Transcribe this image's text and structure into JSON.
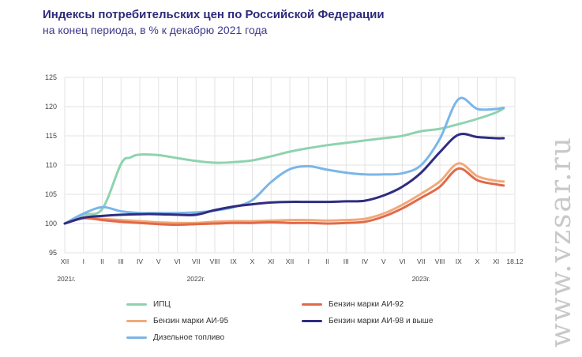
{
  "header": {
    "title": "Индексы потребительских цен по Российской Федерации",
    "subtitle": "на конец периода, в % к декабрю 2021 года"
  },
  "watermark": "www.vzsar.ru",
  "chart_data": {
    "type": "line",
    "ylim": [
      95,
      125
    ],
    "yticks": [
      95,
      100,
      105,
      110,
      115,
      120,
      125
    ],
    "x_ticks": [
      "XII",
      "I",
      "II",
      "III",
      "IV",
      "V",
      "VI",
      "VII",
      "VIII",
      "IX",
      "X",
      "XI",
      "XII",
      "I",
      "II",
      "III",
      "IV",
      "V",
      "VI",
      "VII",
      "VIII",
      "IX",
      "X",
      "XI",
      "18.12"
    ],
    "year_labels": [
      "2021г.",
      "2022г.",
      "2023г."
    ],
    "grid": true,
    "legend_position": "bottom",
    "series": [
      {
        "name": "ИПЦ",
        "color": "#8fd3ae",
        "points": [
          [
            0,
            100
          ],
          [
            1,
            101.5
          ],
          [
            2,
            102.5
          ],
          [
            3,
            110.2
          ],
          [
            3.5,
            111.3
          ],
          [
            4,
            111.8
          ],
          [
            5,
            111.7
          ],
          [
            6,
            111.2
          ],
          [
            7,
            110.7
          ],
          [
            8,
            110.4
          ],
          [
            9,
            110.5
          ],
          [
            10,
            110.8
          ],
          [
            11,
            111.5
          ],
          [
            12,
            112.3
          ],
          [
            13,
            112.9
          ],
          [
            14,
            113.4
          ],
          [
            15,
            113.8
          ],
          [
            16,
            114.2
          ],
          [
            17,
            114.6
          ],
          [
            18,
            115
          ],
          [
            19,
            115.8
          ],
          [
            20,
            116.2
          ],
          [
            21,
            117
          ],
          [
            22,
            117.9
          ],
          [
            23,
            119
          ],
          [
            23.4,
            119.7
          ]
        ]
      },
      {
        "name": "Бензин марки АИ-92",
        "color": "#e06a49",
        "points": [
          [
            0,
            100
          ],
          [
            1,
            100.9
          ],
          [
            2,
            100.6
          ],
          [
            3,
            100.3
          ],
          [
            4,
            100.1
          ],
          [
            5,
            99.9
          ],
          [
            6,
            99.8
          ],
          [
            7,
            99.9
          ],
          [
            8,
            100
          ],
          [
            9,
            100.1
          ],
          [
            10,
            100.1
          ],
          [
            11,
            100.2
          ],
          [
            12,
            100.1
          ],
          [
            13,
            100.1
          ],
          [
            14,
            100
          ],
          [
            15,
            100.1
          ],
          [
            16,
            100.3
          ],
          [
            17,
            101.2
          ],
          [
            18,
            102.6
          ],
          [
            19,
            104.4
          ],
          [
            20,
            106.3
          ],
          [
            21,
            109.4
          ],
          [
            22,
            107.4
          ],
          [
            23,
            106.7
          ],
          [
            23.4,
            106.5
          ]
        ]
      },
      {
        "name": "Бензин марки АИ-95",
        "color": "#f2a979",
        "points": [
          [
            0,
            100
          ],
          [
            1,
            101
          ],
          [
            2,
            100.8
          ],
          [
            3,
            100.6
          ],
          [
            4,
            100.4
          ],
          [
            5,
            100.2
          ],
          [
            6,
            100.1
          ],
          [
            7,
            100.1
          ],
          [
            8,
            100.3
          ],
          [
            9,
            100.4
          ],
          [
            10,
            100.4
          ],
          [
            11,
            100.5
          ],
          [
            12,
            100.6
          ],
          [
            13,
            100.6
          ],
          [
            14,
            100.5
          ],
          [
            15,
            100.6
          ],
          [
            16,
            100.8
          ],
          [
            17,
            101.7
          ],
          [
            18,
            103.2
          ],
          [
            19,
            105.1
          ],
          [
            20,
            107.2
          ],
          [
            21,
            110.3
          ],
          [
            22,
            108.1
          ],
          [
            23,
            107.3
          ],
          [
            23.4,
            107.2
          ]
        ]
      },
      {
        "name": "Бензин марки АИ-98 и выше",
        "color": "#2f2c82",
        "points": [
          [
            0,
            100
          ],
          [
            1,
            101
          ],
          [
            2,
            101.3
          ],
          [
            3,
            101.5
          ],
          [
            4,
            101.6
          ],
          [
            5,
            101.6
          ],
          [
            6,
            101.5
          ],
          [
            7,
            101.5
          ],
          [
            8,
            102.3
          ],
          [
            9,
            102.9
          ],
          [
            10,
            103.3
          ],
          [
            11,
            103.6
          ],
          [
            12,
            103.7
          ],
          [
            13,
            103.7
          ],
          [
            14,
            103.7
          ],
          [
            15,
            103.8
          ],
          [
            16,
            103.9
          ],
          [
            17,
            104.8
          ],
          [
            18,
            106.3
          ],
          [
            19,
            108.7
          ],
          [
            20,
            112.2
          ],
          [
            21,
            115.2
          ],
          [
            22,
            114.8
          ],
          [
            23,
            114.6
          ],
          [
            23.4,
            114.6
          ]
        ]
      },
      {
        "name": "Дизельное топливо",
        "color": "#7bb6e8",
        "points": [
          [
            0,
            100
          ],
          [
            1,
            101.7
          ],
          [
            2,
            102.8
          ],
          [
            3,
            102.1
          ],
          [
            4,
            101.8
          ],
          [
            5,
            101.8
          ],
          [
            6,
            101.8
          ],
          [
            7,
            101.9
          ],
          [
            8,
            102.2
          ],
          [
            9,
            102.8
          ],
          [
            10,
            104
          ],
          [
            11,
            107.1
          ],
          [
            12,
            109.3
          ],
          [
            13,
            109.8
          ],
          [
            14,
            109.2
          ],
          [
            15,
            108.7
          ],
          [
            16,
            108.4
          ],
          [
            17,
            108.4
          ],
          [
            18,
            108.6
          ],
          [
            19,
            110
          ],
          [
            20,
            114.5
          ],
          [
            21,
            121.3
          ],
          [
            22,
            119.6
          ],
          [
            23,
            119.6
          ],
          [
            23.4,
            119.8
          ]
        ]
      }
    ]
  }
}
